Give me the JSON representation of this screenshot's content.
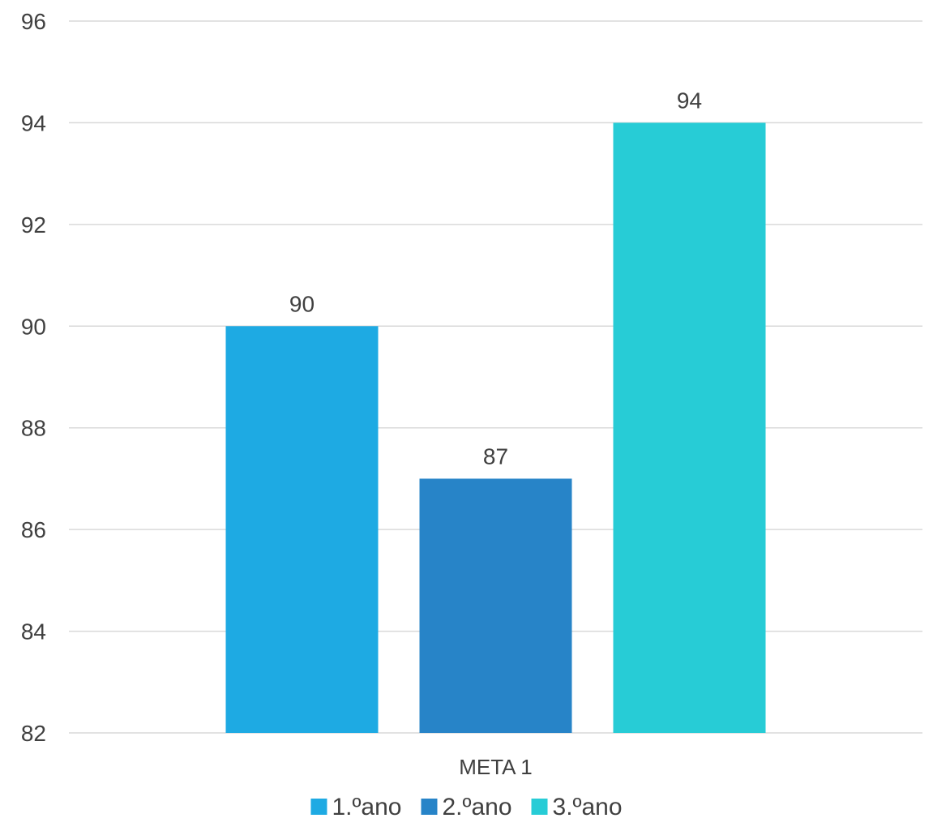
{
  "chart_data": {
    "type": "bar",
    "categories": [
      "META 1"
    ],
    "series": [
      {
        "name": "1.ºano",
        "values": [
          90
        ],
        "color": "#1eaae3"
      },
      {
        "name": "2.ºano",
        "values": [
          87
        ],
        "color": "#2784c8"
      },
      {
        "name": "3.ºano",
        "values": [
          94
        ],
        "color": "#27ccd6"
      }
    ],
    "ylim": [
      82,
      96
    ],
    "ytick_step": 2,
    "yticks": [
      "82",
      "84",
      "86",
      "88",
      "90",
      "92",
      "94",
      "96"
    ],
    "grid": true,
    "legend_position": "bottom",
    "title": "",
    "xlabel": "",
    "ylabel": ""
  }
}
